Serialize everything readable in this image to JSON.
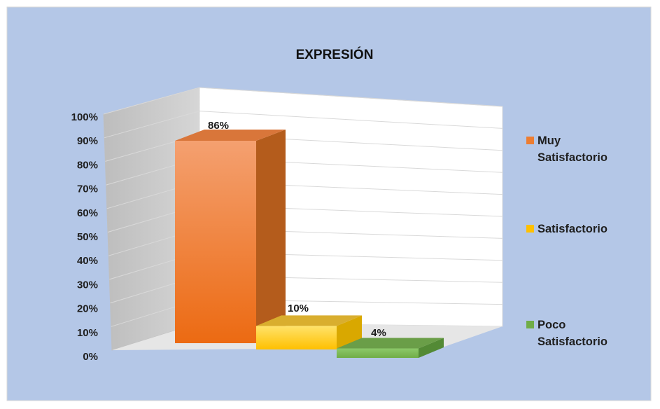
{
  "chart_data": {
    "type": "bar",
    "title": "EXPRESIÓN",
    "categories": [
      "Muy Satisfactorio",
      "Satisfactorio",
      "Poco Satisfactorio"
    ],
    "values": [
      86,
      10,
      4
    ],
    "value_labels": [
      "86%",
      "10%",
      "4%"
    ],
    "ylim": [
      0,
      100
    ],
    "yticks": [
      "0%",
      "10%",
      "20%",
      "30%",
      "40%",
      "50%",
      "60%",
      "70%",
      "80%",
      "90%",
      "100%"
    ],
    "legend": {
      "position": "right",
      "entries": [
        {
          "lines": [
            "Muy",
            "Satisfactorio"
          ],
          "color": "#ED7D31"
        },
        {
          "lines": [
            "Satisfactorio"
          ],
          "color": "#FFC000"
        },
        {
          "lines": [
            "Poco",
            "Satisfactorio"
          ],
          "color": "#70AD47"
        }
      ]
    },
    "colors": [
      "#ED7D31",
      "#FFC000",
      "#70AD47"
    ],
    "background": "#B4C7E7",
    "grid": true,
    "style": "3d-clustered-column"
  }
}
